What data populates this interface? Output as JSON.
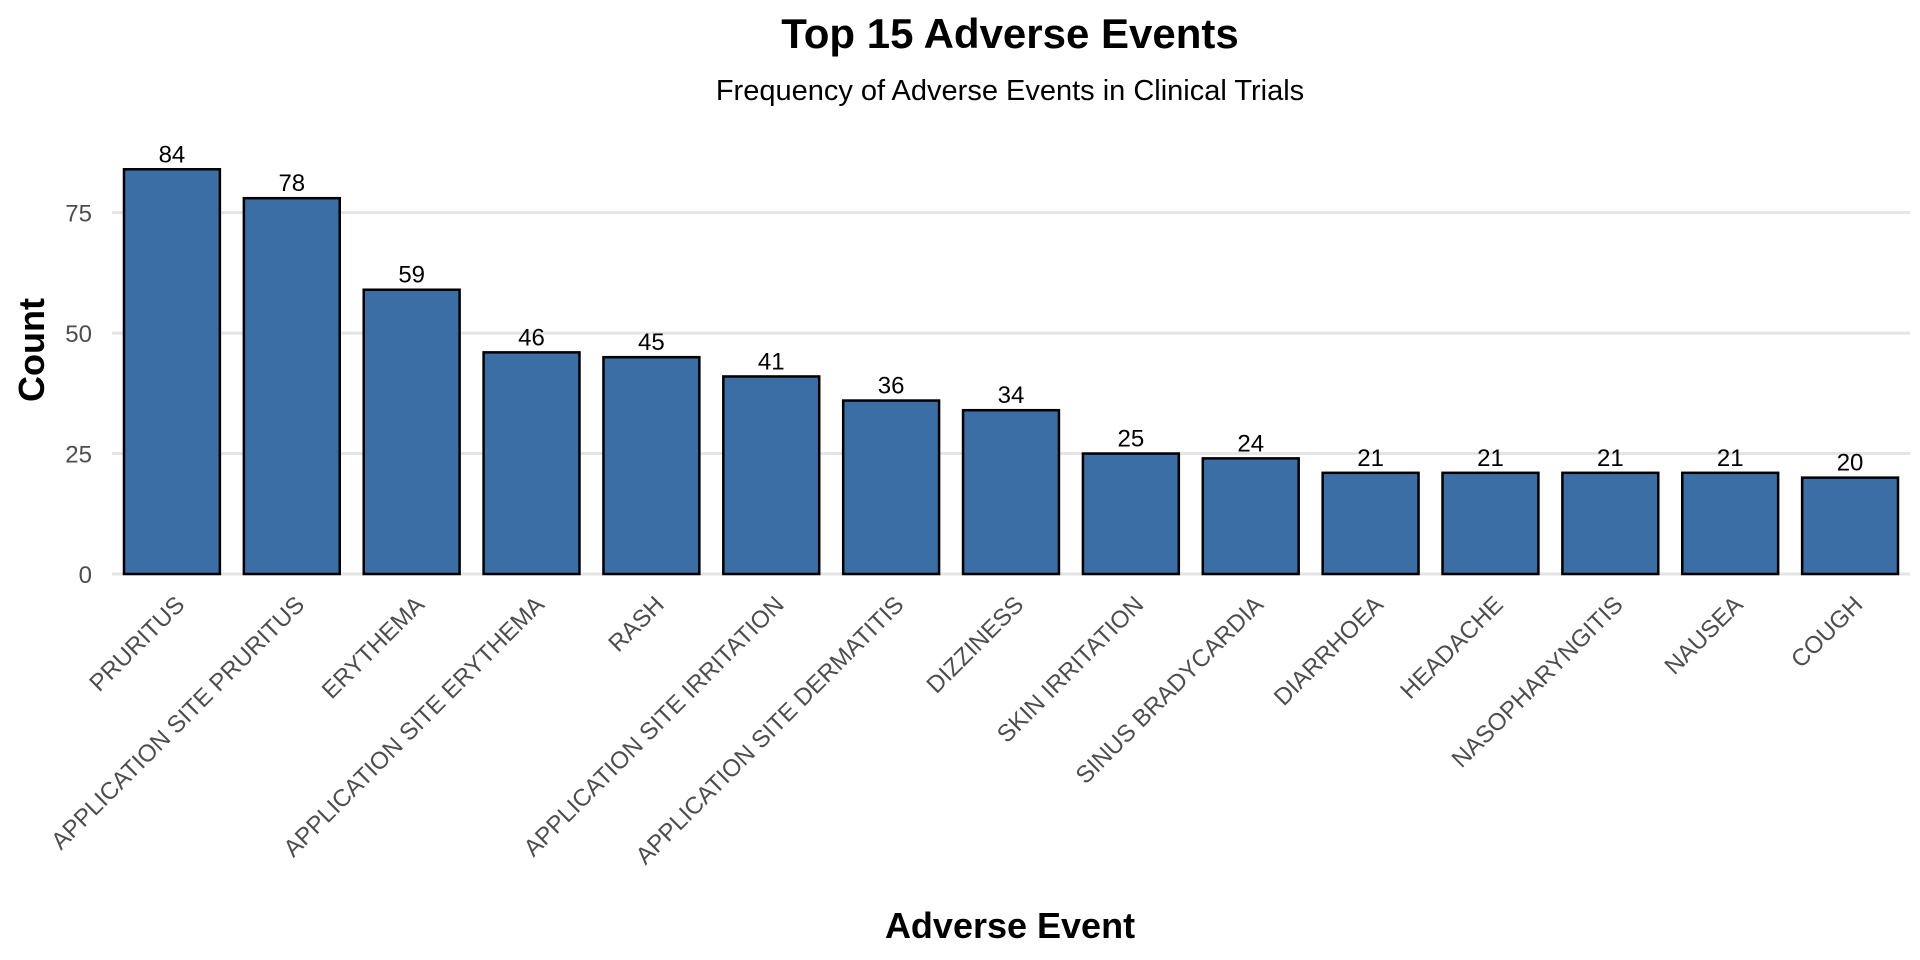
{
  "chart_data": {
    "type": "bar",
    "title": "Top 15 Adverse Events",
    "subtitle": "Frequency of Adverse Events in Clinical Trials",
    "xlabel": "Adverse Event",
    "ylabel": "Count",
    "categories": [
      "PRURITUS",
      "APPLICATION SITE PRURITUS",
      "ERYTHEMA",
      "APPLICATION SITE ERYTHEMA",
      "RASH",
      "APPLICATION SITE IRRITATION",
      "APPLICATION SITE DERMATITIS",
      "DIZZINESS",
      "SKIN IRRITATION",
      "SINUS BRADYCARDIA",
      "DIARRHOEA",
      "HEADACHE",
      "NASOPHARYNGITIS",
      "NAUSEA",
      "COUGH"
    ],
    "values": [
      84,
      78,
      59,
      46,
      45,
      41,
      36,
      34,
      25,
      24,
      21,
      21,
      21,
      21,
      20
    ],
    "ylim": [
      0,
      88
    ],
    "yticks": [
      0,
      25,
      50,
      75
    ],
    "grid": "horizontal",
    "legend": "none",
    "colors": {
      "bar_fill": "#3a6ea5",
      "bar_stroke": "#000000",
      "grid": "#e5e5e5"
    }
  }
}
